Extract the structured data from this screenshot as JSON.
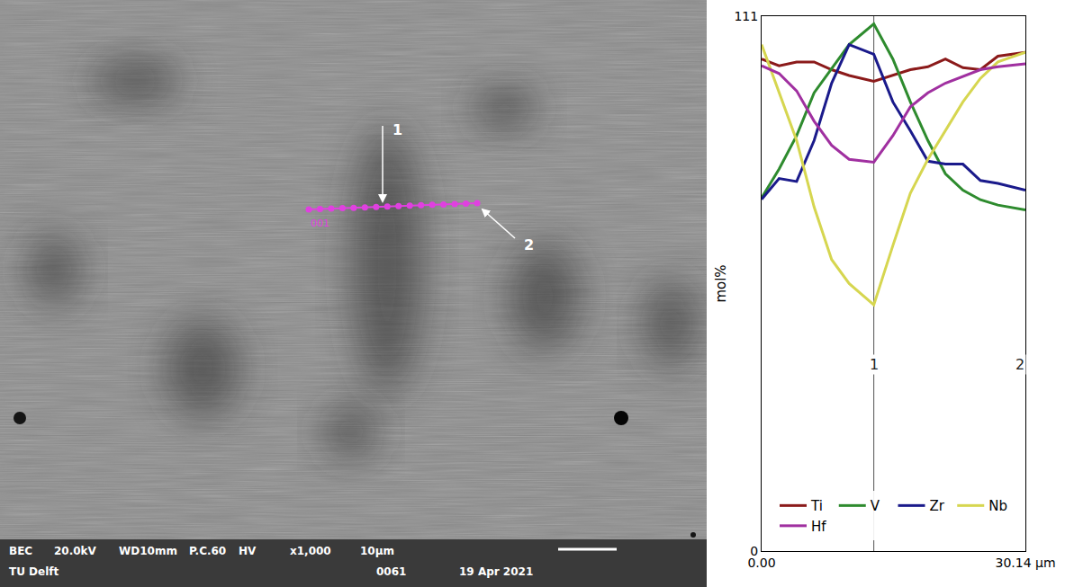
{
  "micrograph": {
    "scan_label": "001",
    "markers": [
      "1",
      "2"
    ],
    "info_bar": {
      "row1": [
        "BEC",
        "20.0kV",
        "WD10mm",
        "P.C.60",
        "HV",
        "x1,000",
        "10μm"
      ],
      "row2_left": "TU Delft",
      "row2_right": [
        "0061",
        "19 Apr 2021"
      ]
    }
  },
  "chart_data": {
    "type": "line",
    "x": [
      0,
      2,
      4,
      6,
      8,
      10,
      12.82,
      15,
      17,
      19,
      21,
      23,
      25,
      27,
      30.14
    ],
    "series": [
      {
        "name": "Ti",
        "color": "#8b1a1a",
        "values": [
          102.1,
          100.7,
          101.5,
          101.5,
          99.9,
          98.7,
          97.5,
          98.7,
          99.9,
          100.5,
          102.1,
          100.3,
          99.9,
          102.7,
          103.5
        ]
      },
      {
        "name": "V",
        "color": "#2e8b2e",
        "values": [
          73.3,
          79.3,
          86.2,
          95.1,
          100.1,
          105.1,
          109.4,
          102.1,
          93.2,
          85.2,
          78.3,
          74.9,
          72.9,
          71.8,
          70.8
        ]
      },
      {
        "name": "Zr",
        "color": "#1a1a8b",
        "values": [
          73.0,
          77.3,
          76.7,
          85.2,
          97.1,
          105.1,
          103.1,
          93.2,
          87.2,
          80.9,
          80.3,
          80.3,
          76.9,
          76.3,
          74.9
        ]
      },
      {
        "name": "Nb",
        "color": "#d6d650",
        "values": [
          105.1,
          95.1,
          85.2,
          71.4,
          60.5,
          55.5,
          51.1,
          63.4,
          74.3,
          81.3,
          87.2,
          93.2,
          98.1,
          101.5,
          103.5
        ]
      },
      {
        "name": "Hf",
        "color": "#a030a0",
        "values": [
          100.7,
          99.1,
          95.5,
          89.2,
          84.2,
          81.3,
          80.7,
          86.2,
          92.2,
          95.1,
          97.1,
          98.5,
          99.9,
          100.5,
          101.1
        ]
      }
    ],
    "xlim": [
      0,
      30.14
    ],
    "xticks": [
      {
        "value": 0,
        "label": "0.00"
      },
      {
        "value": 30.14,
        "label": "30.14 μm"
      }
    ],
    "ylim": [
      0,
      111
    ],
    "yticks": [
      0,
      111
    ],
    "y_label": "mol%",
    "annotations": [
      {
        "text": "1",
        "x": 12.82,
        "line_style": "solid"
      },
      {
        "text": "2",
        "x": 29.5
      }
    ],
    "legend": "bottom",
    "grid": false
  }
}
